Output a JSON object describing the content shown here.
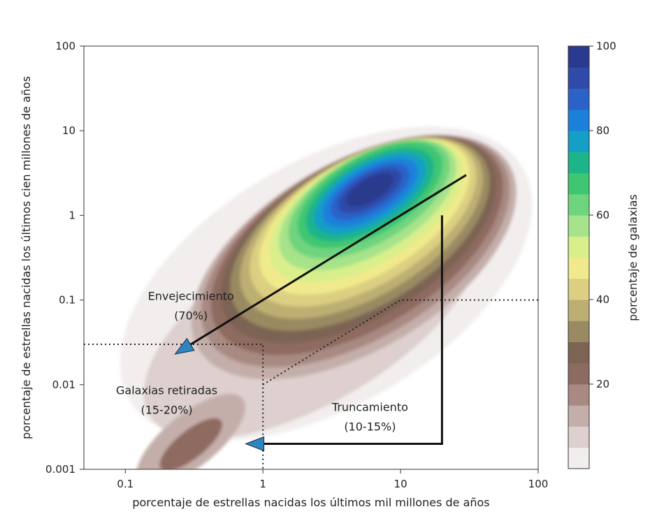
{
  "chart_data": {
    "type": "contourf",
    "xscale": "log",
    "yscale": "log",
    "xlim": [
      0.05,
      100
    ],
    "ylim": [
      0.001,
      100
    ],
    "xlabel": "porcentaje de estrellas nacidas los últimos mil millones de años",
    "ylabel": "porcentaje de estrellas nacidas los últimos cien millones de años",
    "x_ticks": [
      0.1,
      1,
      10,
      100
    ],
    "x_tick_labels": [
      "0.1",
      "1",
      "10",
      "100"
    ],
    "y_ticks": [
      0.001,
      0.01,
      0.1,
      1,
      10,
      100
    ],
    "y_tick_labels": [
      "0.001",
      "0.01",
      "0.1",
      "1",
      "10",
      "100"
    ],
    "colorbar": {
      "label": "porcentaje de galaxias",
      "range": [
        0,
        100
      ],
      "ticks": [
        20,
        40,
        60,
        80,
        100
      ],
      "tick_labels": [
        "20",
        "40",
        "60",
        "80",
        "100"
      ],
      "levels": [
        {
          "upto": 5,
          "color": "#f3eeee"
        },
        {
          "upto": 10,
          "color": "#ddd0ce"
        },
        {
          "upto": 15,
          "color": "#c4aeaa"
        },
        {
          "upto": 20,
          "color": "#a88a82"
        },
        {
          "upto": 25,
          "color": "#8e6b60"
        },
        {
          "upto": 30,
          "color": "#7d6352"
        },
        {
          "upto": 35,
          "color": "#9a8a62"
        },
        {
          "upto": 40,
          "color": "#bdaf72"
        },
        {
          "upto": 45,
          "color": "#dccf82"
        },
        {
          "upto": 50,
          "color": "#f0ea8c"
        },
        {
          "upto": 55,
          "color": "#d9ef8c"
        },
        {
          "upto": 60,
          "color": "#a6e38a"
        },
        {
          "upto": 65,
          "color": "#6fd47e"
        },
        {
          "upto": 70,
          "color": "#3fc672"
        },
        {
          "upto": 75,
          "color": "#1db48a"
        },
        {
          "upto": 80,
          "color": "#159fc6"
        },
        {
          "upto": 85,
          "color": "#1c80db"
        },
        {
          "upto": 90,
          "color": "#2b62c8"
        },
        {
          "upto": 95,
          "color": "#2f4aa8"
        },
        {
          "upto": 100,
          "color": "#2a3a8e"
        }
      ]
    },
    "ridge": {
      "from": [
        0.7,
        0.08
      ],
      "to": [
        30,
        3
      ],
      "peak": [
        6,
        2
      ]
    },
    "annotations": [
      {
        "line1": "Envejecimiento",
        "line2": "(70%)",
        "x": 0.3,
        "y": 0.1
      },
      {
        "line1": "Galaxias retiradas",
        "line2": "(15-20%)",
        "x": 0.2,
        "y": 0.0077
      },
      {
        "line1": "Truncamiento",
        "line2": "(10-15%)",
        "x": 6,
        "y": 0.0049
      }
    ],
    "arrows": [
      {
        "name": "envejecimiento-arrow",
        "points": [
          [
            30,
            3
          ],
          [
            0.23,
            0.023
          ]
        ]
      },
      {
        "name": "truncamiento-arrow",
        "points": [
          [
            20,
            1
          ],
          [
            20,
            0.002
          ],
          [
            0.75,
            0.002
          ]
        ]
      }
    ],
    "dotted_lines": [
      {
        "name": "retiradas-box-line",
        "points": [
          [
            0.05,
            0.03
          ],
          [
            1,
            0.03
          ],
          [
            1,
            0.001
          ]
        ]
      },
      {
        "name": "truncamiento-boundary-line",
        "points": [
          [
            1,
            0.01
          ],
          [
            10,
            0.1
          ],
          [
            100,
            0.1
          ]
        ]
      }
    ],
    "colors": {
      "arrow_fill": "#2e86c1",
      "axis": "#333333"
    }
  }
}
